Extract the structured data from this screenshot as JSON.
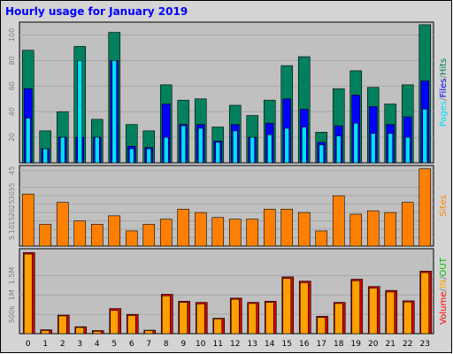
{
  "chart_data": {
    "type": "bar",
    "title": "Hourly usage for January 2019",
    "categories": [
      "0",
      "1",
      "2",
      "3",
      "4",
      "5",
      "6",
      "7",
      "8",
      "9",
      "10",
      "11",
      "12",
      "13",
      "14",
      "15",
      "16",
      "17",
      "18",
      "19",
      "20",
      "21",
      "22",
      "23"
    ],
    "panels": [
      {
        "name": "hits",
        "ylim": [
          0,
          110
        ],
        "yticks": [
          "20",
          "40",
          "60",
          "80",
          "100"
        ],
        "ytick_values": [
          20,
          40,
          60,
          80,
          100
        ],
        "side_labels": [
          "Pages",
          "/",
          "Files",
          "/",
          "Hits"
        ],
        "side_colors": [
          "#00e0ff",
          "#808080",
          "#0000ff",
          "#808080",
          "#00805c"
        ],
        "series": [
          {
            "name": "Hits",
            "color": "#00805c",
            "values": [
              88,
              25,
              40,
              91,
              34,
              102,
              30,
              25,
              61,
              49,
              50,
              28,
              45,
              37,
              49,
              76,
              83,
              24,
              58,
              72,
              59,
              46,
              61,
              108
            ]
          },
          {
            "name": "Files",
            "color": "#0000ff",
            "values": [
              58,
              11,
              20,
              20,
              20,
              80,
              13,
              12,
              46,
              30,
              30,
              17,
              30,
              20,
              31,
              50,
              42,
              16,
              29,
              53,
              44,
              30,
              36,
              64
            ]
          },
          {
            "name": "Pages",
            "color": "#00e0ff",
            "values": [
              35,
              11,
              20,
              80,
              20,
              80,
              11,
              11,
              20,
              29,
              27,
              16,
              25,
              20,
              22,
              27,
              28,
              14,
              21,
              31,
              23,
              23,
              20,
              42
            ]
          }
        ]
      },
      {
        "name": "sites",
        "ylim": [
          0,
          48
        ],
        "yticks": [
          "5",
          "10",
          "15",
          "20",
          "25",
          "30",
          "35",
          "45"
        ],
        "ytick_values": [
          5,
          10,
          15,
          20,
          25,
          30,
          35,
          45
        ],
        "side_labels": [
          "Sites"
        ],
        "side_colors": [
          "#ff8000"
        ],
        "series": [
          {
            "name": "Sites",
            "color": "#ff8000",
            "values": [
              31,
              13,
              26,
              15,
              13,
              18,
              9,
              13,
              16,
              22,
              20,
              17,
              16,
              16,
              22,
              22,
              20,
              9,
              30,
              19,
              21,
              20,
              26,
              46
            ]
          }
        ]
      },
      {
        "name": "volume",
        "ylim": [
          0,
          2200000
        ],
        "yticks": [
          "500k",
          "1M",
          "1.5M"
        ],
        "ytick_values": [
          500000,
          1000000,
          1500000
        ],
        "side_labels": [
          "Volume",
          "/",
          "IN",
          "/",
          "OUT"
        ],
        "side_colors": [
          "#ff0000",
          "#808080",
          "#ffa000",
          "#808080",
          "#00c000"
        ],
        "series": [
          {
            "name": "Volume",
            "color": "#d00000",
            "values": [
              2100000,
              100000,
              480000,
              180000,
              80000,
              650000,
              500000,
              90000,
              1020000,
              840000,
              810000,
              400000,
              920000,
              810000,
              840000,
              1470000,
              1360000,
              450000,
              810000,
              1410000,
              1220000,
              1120000,
              850000,
              1620000
            ]
          },
          {
            "name": "IN",
            "color": "#ffa000",
            "values": [
              2060000,
              80000,
              460000,
              160000,
              60000,
              600000,
              470000,
              80000,
              980000,
              810000,
              770000,
              380000,
              890000,
              780000,
              810000,
              1430000,
              1320000,
              420000,
              780000,
              1370000,
              1180000,
              1080000,
              820000,
              1580000
            ]
          }
        ]
      }
    ]
  }
}
